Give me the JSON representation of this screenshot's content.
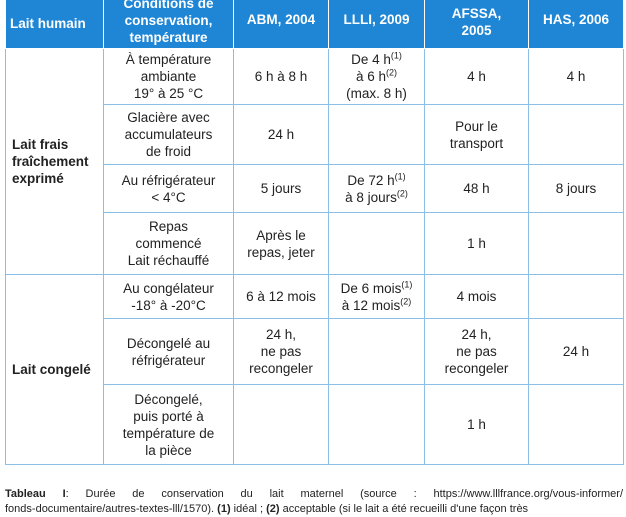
{
  "headers": {
    "c0": "Lait humain",
    "c1": [
      "Conditions de",
      "conservation,",
      "température"
    ],
    "c2": "ABM, 2004",
    "c3": "LLLI, 2009",
    "c4": [
      "AFSSA,",
      "2005"
    ],
    "c5": "HAS, 2006"
  },
  "groups": {
    "fresh": [
      "Lait frais",
      "fraîchement",
      "exprimé"
    ],
    "frozen": "Lait congelé"
  },
  "rows": {
    "r1": {
      "cond": [
        "À température",
        "ambiante",
        "19° à 25 °C"
      ],
      "abm": "6 h à 8 h",
      "llli_a": "De 4 h",
      "sup1": "(1)",
      "llli_b": "à 6 h",
      "sup2": "(2)",
      "llli_c": "(max. 8 h)",
      "afssa": "4 h",
      "has": "4 h"
    },
    "r2": {
      "cond": [
        "Glacière avec",
        "accumulateurs",
        "de froid"
      ],
      "abm": "24 h",
      "afssa": [
        "Pour le",
        "transport"
      ]
    },
    "r3": {
      "cond": [
        "Au réfrigérateur",
        "< 4°C"
      ],
      "abm": "5 jours",
      "llli_a": "De 72 h",
      "sup1": "(1)",
      "llli_b": "à 8 jours",
      "sup2": "(2)",
      "afssa": "48 h",
      "has": "8 jours"
    },
    "r4": {
      "cond": [
        "Repas",
        "commencé",
        "Lait réchauffé"
      ],
      "abm": [
        "Après le",
        "repas, jeter"
      ],
      "afssa": "1 h"
    },
    "r5": {
      "cond": [
        "Au congélateur",
        "-18° à -20°C"
      ],
      "abm": "6 à 12 mois",
      "llli_a": "De 6 mois",
      "sup1": "(1)",
      "llli_b": "à 12 mois",
      "sup2": "(2)",
      "afssa": "4 mois"
    },
    "r6": {
      "cond": [
        "Décongelé au",
        "réfrigérateur"
      ],
      "abm": [
        "24 h,",
        "ne pas",
        "recongeler"
      ],
      "afssa": [
        "24 h,",
        "ne pas",
        "recongeler"
      ],
      "has": "24 h"
    },
    "r7": {
      "cond": [
        "Décongelé,",
        "puis porté à",
        "température de",
        "la pièce"
      ],
      "afssa": "1 h"
    }
  },
  "caption": {
    "label": "Tableau I",
    "line1": ": Durée de conservation du lait maternel (source : https://www.lllfrance.org/vous-informer/",
    "line2a": "fonds-documentaire/autres-textes-lll/1570). ",
    "n1": "(1)",
    "t1": " idéal ; ",
    "n2": "(2)",
    "t2": " acceptable (si le lait a été recueilli d'une façon très"
  }
}
